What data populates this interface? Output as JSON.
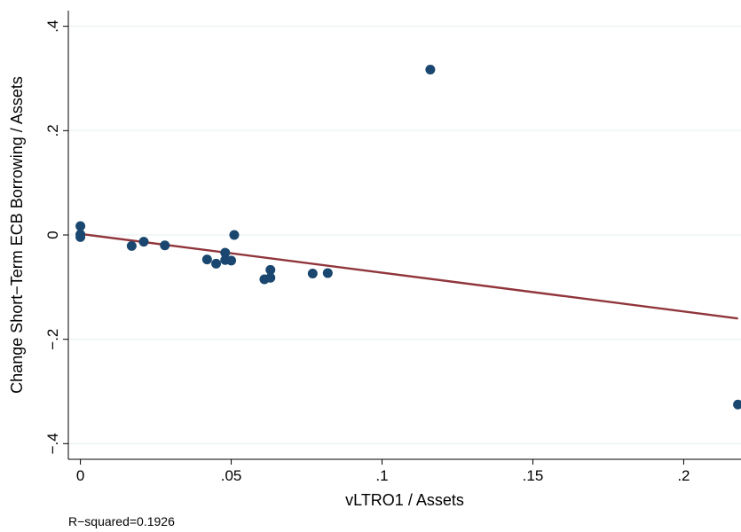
{
  "chart_data": {
    "type": "scatter",
    "xlabel": "vLTRO1 / Assets",
    "ylabel": "Change Short−Term ECB Borrowing / Assets",
    "xlim": [
      -0.004,
      0.219
    ],
    "ylim": [
      -0.43,
      0.43
    ],
    "x_ticks": [
      0,
      0.05,
      0.1,
      0.15,
      0.2
    ],
    "x_tick_labels": [
      "0",
      ".05",
      ".1",
      ".15",
      ".2"
    ],
    "y_ticks": [
      -0.4,
      -0.2,
      0,
      0.2,
      0.4
    ],
    "y_tick_labels": [
      "−.4",
      "−.2",
      "0",
      ".2",
      ".4"
    ],
    "grid": true,
    "series": [
      {
        "type": "scatter",
        "color": "#1a476f",
        "points": [
          {
            "x": 0.0,
            "y": 0.017
          },
          {
            "x": 0.0,
            "y": 0.001
          },
          {
            "x": 0.0,
            "y": -0.004
          },
          {
            "x": 0.017,
            "y": -0.021
          },
          {
            "x": 0.021,
            "y": -0.013
          },
          {
            "x": 0.028,
            "y": -0.02
          },
          {
            "x": 0.042,
            "y": -0.047
          },
          {
            "x": 0.045,
            "y": -0.055
          },
          {
            "x": 0.048,
            "y": -0.034
          },
          {
            "x": 0.048,
            "y": -0.048
          },
          {
            "x": 0.05,
            "y": -0.049
          },
          {
            "x": 0.051,
            "y": 0.0
          },
          {
            "x": 0.061,
            "y": -0.085
          },
          {
            "x": 0.063,
            "y": -0.082
          },
          {
            "x": 0.063,
            "y": -0.067
          },
          {
            "x": 0.077,
            "y": -0.074
          },
          {
            "x": 0.082,
            "y": -0.073
          },
          {
            "x": 0.116,
            "y": 0.317
          },
          {
            "x": 0.218,
            "y": -0.325
          }
        ]
      },
      {
        "type": "line",
        "color": "#90353b",
        "points": [
          {
            "x": 0.0,
            "y": 0.002
          },
          {
            "x": 0.218,
            "y": -0.16
          }
        ]
      }
    ]
  },
  "note": "R−squared=0.1926"
}
